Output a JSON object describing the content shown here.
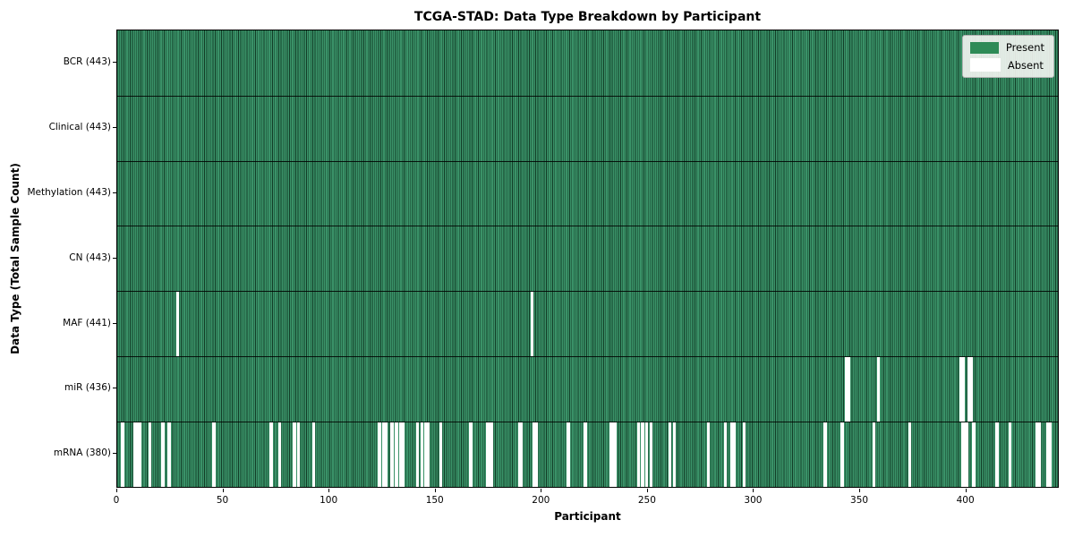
{
  "chart_data": {
    "type": "heatmap",
    "title": "TCGA-STAD: Data Type Breakdown by Participant",
    "xlabel": "Participant",
    "ylabel": "Data Type (Total Sample Count)",
    "n_participants": 443,
    "x_range": [
      0,
      443
    ],
    "x_ticks": [
      0,
      50,
      100,
      150,
      200,
      250,
      300,
      350,
      400
    ],
    "legend": {
      "present_label": "Present",
      "absent_label": "Absent",
      "position": "upper right"
    },
    "colors": {
      "present": "#2e8b57",
      "bar_fill": "#3a9268",
      "bar_edge": "#123d27",
      "absent": "#ffffff",
      "row_divider": "#1a1a1a",
      "axes_border": "#000000",
      "legend_bg": "#f5f6f3",
      "legend_border": "#b3b3b3"
    },
    "rows": [
      {
        "label": "BCR (443)",
        "data_type": "BCR",
        "present_count": 443,
        "absent_participants": []
      },
      {
        "label": "Clinical (443)",
        "data_type": "Clinical",
        "present_count": 443,
        "absent_participants": []
      },
      {
        "label": "Methylation (443)",
        "data_type": "Methylation",
        "present_count": 443,
        "absent_participants": []
      },
      {
        "label": "CN (443)",
        "data_type": "CN",
        "present_count": 443,
        "absent_participants": []
      },
      {
        "label": "MAF (441)",
        "data_type": "MAF",
        "present_count": 441,
        "absent_participants": [
          28,
          195
        ]
      },
      {
        "label": "miR (436)",
        "data_type": "miR",
        "present_count": 436,
        "absent_participants": [
          343,
          344,
          358,
          397,
          398,
          401,
          402
        ]
      },
      {
        "label": "mRNA (380)",
        "data_type": "mRNA",
        "present_count": 380,
        "absent_participants": [
          2,
          8,
          9,
          10,
          15,
          21,
          24,
          45,
          72,
          76,
          83,
          85,
          92,
          123,
          125,
          126,
          129,
          131,
          133,
          134,
          141,
          143,
          145,
          146,
          152,
          166,
          174,
          175,
          176,
          189,
          190,
          196,
          197,
          212,
          220,
          232,
          233,
          234,
          245,
          247,
          249,
          251,
          260,
          262,
          278,
          286,
          289,
          290,
          295,
          333,
          341,
          356,
          373,
          398,
          399,
          400,
          403,
          414,
          420,
          433,
          434,
          438,
          439
        ]
      }
    ]
  }
}
